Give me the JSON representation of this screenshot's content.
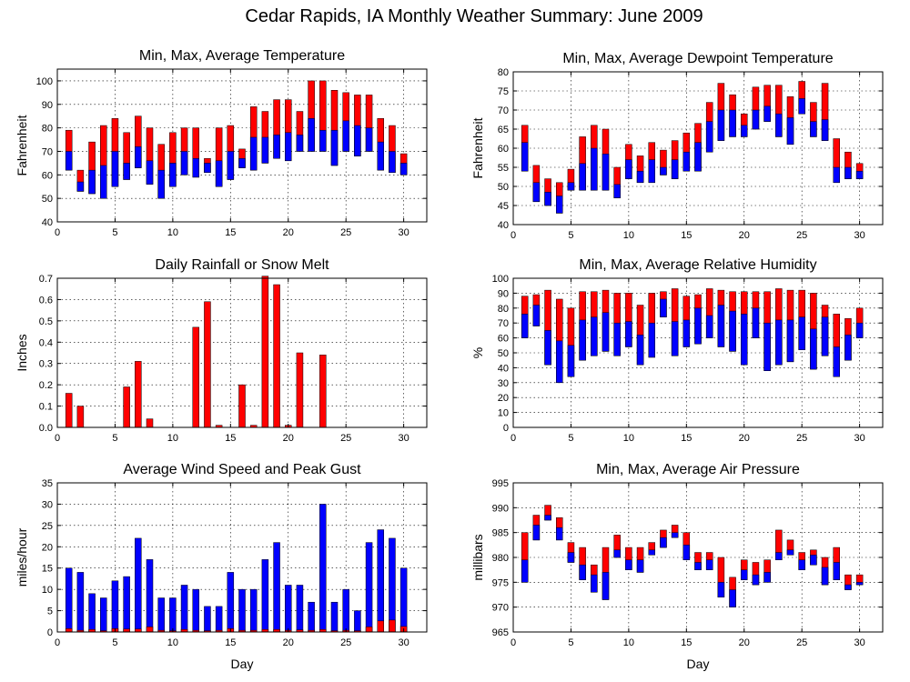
{
  "title": "Cedar Rapids, IA Monthly Weather Summary: June 2009",
  "colors": {
    "max": "#ff0000",
    "min": "#0000ff",
    "edge": "#000000"
  },
  "chart_data": [
    {
      "id": "temperature",
      "type": "bar",
      "title": "Min, Max, Average Temperature",
      "xlabel": "",
      "ylabel": "Fahrenheit",
      "xlim": [
        0,
        32
      ],
      "ylim": [
        40,
        105
      ],
      "xticks": [
        0,
        5,
        10,
        15,
        20,
        25,
        30
      ],
      "yticks": [
        40,
        50,
        60,
        70,
        80,
        90,
        100
      ],
      "grid": true,
      "days": [
        1,
        2,
        3,
        4,
        5,
        6,
        7,
        8,
        9,
        10,
        11,
        12,
        13,
        14,
        15,
        16,
        17,
        18,
        19,
        20,
        21,
        22,
        23,
        24,
        25,
        26,
        27,
        28,
        29,
        30
      ],
      "min": [
        62,
        53,
        52,
        50,
        55,
        58,
        63,
        56,
        50,
        55,
        60,
        59,
        61,
        55,
        58,
        63,
        62,
        65,
        67,
        66,
        70,
        70,
        70,
        64,
        70,
        68,
        70,
        62,
        61,
        60
      ],
      "avg": [
        70,
        57,
        62,
        64,
        70,
        65,
        72,
        66,
        62,
        65,
        70,
        67,
        65,
        66,
        70,
        67,
        76,
        76,
        77,
        78,
        77,
        84,
        79,
        79,
        83,
        81,
        80,
        74,
        70,
        65
      ],
      "max": [
        79,
        62,
        74,
        81,
        84,
        78,
        85,
        80,
        73,
        78,
        80,
        80,
        67,
        80,
        81,
        71,
        89,
        87,
        92,
        92,
        87,
        100,
        100,
        96,
        95,
        94,
        94,
        84,
        81,
        69
      ]
    },
    {
      "id": "dewpoint",
      "type": "bar",
      "title": "Min, Max, Average Dewpoint Temperature",
      "xlabel": "",
      "ylabel": "Fahrenheit",
      "xlim": [
        0,
        32
      ],
      "ylim": [
        40,
        80
      ],
      "xticks": [
        0,
        5,
        10,
        15,
        20,
        25,
        30
      ],
      "yticks": [
        40,
        45,
        50,
        55,
        60,
        65,
        70,
        75,
        80
      ],
      "grid": true,
      "days": [
        1,
        2,
        3,
        4,
        5,
        6,
        7,
        8,
        9,
        10,
        11,
        12,
        13,
        14,
        15,
        16,
        17,
        18,
        19,
        20,
        21,
        22,
        23,
        24,
        25,
        26,
        27,
        28,
        29,
        30
      ],
      "min": [
        54,
        46,
        45,
        43,
        49,
        49,
        49,
        49,
        47,
        52,
        51,
        51,
        53,
        52,
        54,
        54,
        59,
        62,
        63,
        63,
        65,
        67,
        63,
        61,
        69,
        63,
        62,
        51,
        52,
        52
      ],
      "avg": [
        61.5,
        51,
        48.5,
        47.5,
        51,
        56,
        60,
        58.5,
        50.5,
        57,
        54,
        57,
        55,
        57,
        59,
        61.5,
        67,
        70,
        70,
        66,
        70,
        71,
        69,
        68,
        73,
        67,
        67.5,
        55,
        55,
        54
      ],
      "max": [
        66,
        55.5,
        52,
        51,
        54.5,
        63,
        66,
        65,
        55,
        61,
        58,
        61.5,
        59.5,
        62,
        64,
        66.5,
        72,
        77,
        74,
        69,
        76,
        76.5,
        76.5,
        73.5,
        77.5,
        72,
        77,
        62.5,
        59,
        56
      ]
    },
    {
      "id": "rainfall",
      "type": "bar",
      "title": "Daily Rainfall or Snow Melt",
      "xlabel": "",
      "ylabel": "Inches",
      "xlim": [
        0,
        32
      ],
      "ylim": [
        0,
        0.7
      ],
      "xticks": [
        0,
        5,
        10,
        15,
        20,
        25,
        30
      ],
      "yticks": [
        0,
        0.1,
        0.2,
        0.3,
        0.4,
        0.5,
        0.6,
        0.7
      ],
      "ytick_labels": [
        "0.0",
        "0.1",
        "0.2",
        "0.3",
        "0.4",
        "0.5",
        "0.6",
        "0.7"
      ],
      "grid": true,
      "days": [
        1,
        2,
        3,
        4,
        5,
        6,
        7,
        8,
        9,
        10,
        11,
        12,
        13,
        14,
        15,
        16,
        17,
        18,
        19,
        20,
        21,
        22,
        23,
        24,
        25,
        26,
        27,
        28,
        29,
        30
      ],
      "values": [
        0.16,
        0.1,
        0,
        0,
        0,
        0.19,
        0.31,
        0.04,
        0,
        0,
        0,
        0.47,
        0.59,
        0.01,
        0,
        0.2,
        0.01,
        0.71,
        0.67,
        0.01,
        0.35,
        0,
        0.34,
        0,
        0,
        0,
        0,
        0,
        0,
        0
      ]
    },
    {
      "id": "humidity",
      "type": "bar",
      "title": "Min, Max, Average Relative Humidity",
      "xlabel": "",
      "ylabel": "%",
      "xlim": [
        0,
        32
      ],
      "ylim": [
        0,
        100
      ],
      "xticks": [
        0,
        5,
        10,
        15,
        20,
        25,
        30
      ],
      "yticks": [
        0,
        10,
        20,
        30,
        40,
        50,
        60,
        70,
        80,
        90,
        100
      ],
      "grid": true,
      "days": [
        1,
        2,
        3,
        4,
        5,
        6,
        7,
        8,
        9,
        10,
        11,
        12,
        13,
        14,
        15,
        16,
        17,
        18,
        19,
        20,
        21,
        22,
        23,
        24,
        25,
        26,
        27,
        28,
        29,
        30
      ],
      "min": [
        60,
        68,
        42,
        30,
        34,
        45,
        48,
        51,
        48,
        54,
        42,
        47,
        74,
        48,
        54,
        56,
        60,
        54,
        51,
        42,
        60,
        38,
        42,
        44,
        52,
        39,
        48,
        34,
        45,
        60
      ],
      "avg": [
        76,
        82,
        65,
        58,
        55,
        72,
        74,
        77,
        70,
        71,
        62,
        70,
        86,
        71,
        72,
        80,
        75,
        82,
        78,
        76,
        80,
        70,
        72,
        72,
        74,
        66,
        74,
        54,
        62,
        70
      ],
      "max": [
        88,
        89,
        92,
        86,
        80,
        91,
        91,
        92,
        90,
        90,
        82,
        90,
        91,
        93,
        88,
        89,
        93,
        92,
        91,
        91,
        91,
        91,
        93,
        92,
        92,
        90,
        82,
        76,
        73,
        80
      ]
    },
    {
      "id": "wind",
      "type": "bar",
      "title": "Average Wind Speed and Peak Gust",
      "xlabel": "Day",
      "ylabel": "miles/hour",
      "xlim": [
        0,
        32
      ],
      "ylim": [
        0,
        35
      ],
      "xticks": [
        0,
        5,
        10,
        15,
        20,
        25,
        30
      ],
      "yticks": [
        0,
        5,
        10,
        15,
        20,
        25,
        30,
        35
      ],
      "grid": true,
      "days": [
        1,
        2,
        3,
        4,
        5,
        6,
        7,
        8,
        9,
        10,
        11,
        12,
        13,
        14,
        15,
        16,
        17,
        18,
        19,
        20,
        21,
        22,
        23,
        24,
        25,
        26,
        27,
        28,
        29,
        30
      ],
      "peak_gust": [
        15,
        14,
        9,
        8,
        12,
        13,
        22,
        17,
        8,
        8,
        11,
        10,
        6,
        6,
        14,
        10,
        10,
        17,
        21,
        11,
        11,
        7,
        30,
        7,
        10,
        5,
        21,
        24,
        22,
        15
      ],
      "avg_speed": [
        0.8,
        0.4,
        0.6,
        0.3,
        0.8,
        0.7,
        0.7,
        1.2,
        0.4,
        0.3,
        0.6,
        0.4,
        0.3,
        0.4,
        0.8,
        0.4,
        0.4,
        0.6,
        0.6,
        0.4,
        0.5,
        0.4,
        0.6,
        0.3,
        0.4,
        0.3,
        1.2,
        2.6,
        2.8,
        1.3
      ]
    },
    {
      "id": "pressure",
      "type": "bar",
      "title": "Min, Max, Average Air Pressure",
      "xlabel": "Day",
      "ylabel": "millibars",
      "xlim": [
        0,
        32
      ],
      "ylim": [
        965,
        995
      ],
      "xticks": [
        0,
        5,
        10,
        15,
        20,
        25,
        30
      ],
      "yticks": [
        965,
        970,
        975,
        980,
        985,
        990,
        995
      ],
      "grid": true,
      "days": [
        1,
        2,
        3,
        4,
        5,
        6,
        7,
        8,
        9,
        10,
        11,
        12,
        13,
        14,
        15,
        16,
        17,
        18,
        19,
        20,
        21,
        22,
        23,
        24,
        25,
        26,
        27,
        28,
        29,
        30
      ],
      "min": [
        975,
        983.5,
        987.5,
        983.5,
        979,
        975.5,
        973,
        971.5,
        980,
        977.5,
        977,
        980.5,
        982,
        984,
        979.5,
        977.5,
        977.5,
        972,
        970,
        975.5,
        974.5,
        975,
        979.5,
        980.5,
        977.5,
        978.5,
        974.5,
        975.5,
        973.5,
        974.5
      ],
      "avg": [
        979.5,
        986.5,
        988.5,
        986,
        981,
        978.5,
        976.5,
        977,
        981.5,
        979.5,
        979.5,
        981.5,
        984,
        985,
        982.5,
        979,
        979.5,
        975,
        973.5,
        977.5,
        976.5,
        977,
        981,
        981.5,
        979.5,
        980.5,
        978,
        979,
        974.5,
        975
      ],
      "max": [
        985,
        988.5,
        990.5,
        988,
        983,
        982,
        978.5,
        982,
        984.5,
        982,
        982,
        983,
        985.5,
        986.5,
        985,
        981,
        981,
        980,
        976,
        979.5,
        979,
        979.5,
        985.5,
        983.5,
        981,
        981.5,
        980,
        982,
        976.5,
        976.5
      ]
    }
  ]
}
